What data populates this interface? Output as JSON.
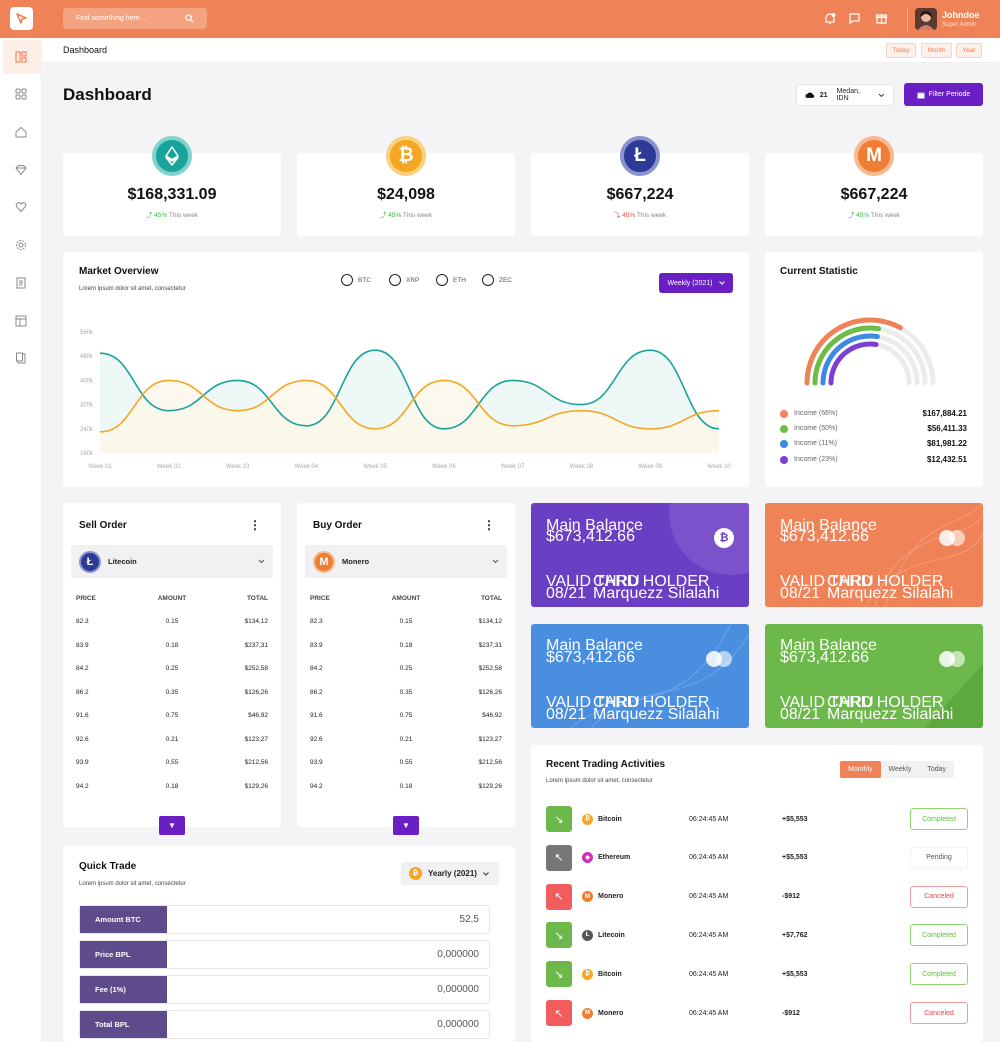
{
  "header": {
    "search_placeholder": "Find something here...",
    "user_name": "Johndoe",
    "user_role": "Super Admin"
  },
  "subbar": {
    "breadcrumb": "Dashboard",
    "ranges": [
      "Today",
      "Month",
      "Year"
    ]
  },
  "page": {
    "title": "Dashboard",
    "weather_temp": "21",
    "location": "Medan, IDN",
    "filter_label": "Filter Periode"
  },
  "stats": [
    {
      "coin": "ethereum",
      "value": "$168,331.09",
      "percent": "45%",
      "suffix": "This week",
      "trend": "up",
      "color": "#1aa39a"
    },
    {
      "coin": "bitcoin",
      "value": "$24,098",
      "percent": "45%",
      "suffix": "This week",
      "trend": "up",
      "color": "#f5a623"
    },
    {
      "coin": "litecoin",
      "value": "$667,224",
      "percent": "45%",
      "suffix": "This week",
      "trend": "down",
      "color": "#2e3a97"
    },
    {
      "coin": "monero",
      "value": "$667,224",
      "percent": "45%",
      "suffix": "This week",
      "trend": "up",
      "color": "#ef7d33"
    }
  ],
  "market": {
    "title": "Market Overview",
    "subtitle": "Lorem ipsum dolor sit amet, consectetur",
    "options": [
      "BTC",
      "XRP",
      "ETH",
      "ZEC"
    ],
    "period_label": "Weekly (2021)"
  },
  "chart_data": {
    "type": "area",
    "x": [
      "Week 01",
      "Week 02",
      "Week 03",
      "Week 04",
      "Week 05",
      "Week 06",
      "Week 07",
      "Week 08",
      "Week 09",
      "Week 10"
    ],
    "yticks": [
      "160k",
      "240k",
      "320k",
      "400k",
      "480k",
      "560k"
    ],
    "ylim": [
      160,
      560
    ],
    "series": [
      {
        "color": "#1aa39a",
        "values": [
          490,
          300,
          400,
          250,
          500,
          240,
          400,
          320,
          500,
          240
        ]
      },
      {
        "color": "#f5a623",
        "values": [
          230,
          400,
          300,
          400,
          240,
          400,
          250,
          300,
          240,
          300
        ]
      }
    ]
  },
  "current_statistic": {
    "title": "Current Statistic",
    "items": [
      {
        "label": "Income (66%)",
        "value": "$167,884.21",
        "color": "#ef8256"
      },
      {
        "label": "Income (50%)",
        "value": "$56,411.33",
        "color": "#6cbd45"
      },
      {
        "label": "Income (11%)",
        "value": "$81,981.22",
        "color": "#3b8ae6"
      },
      {
        "label": "Income (23%)",
        "value": "$12,432.51",
        "color": "#7b3fd1"
      }
    ]
  },
  "sell_order": {
    "title": "Sell Order",
    "coin": "Litecoin",
    "headers": [
      "PRICE",
      "AMOUNT",
      "TOTAL"
    ],
    "rows": [
      [
        "82.3",
        "0.15",
        "$134,12"
      ],
      [
        "83.9",
        "0.18",
        "$237,31"
      ],
      [
        "84.2",
        "0.25",
        "$252,58"
      ],
      [
        "86.2",
        "0.35",
        "$126,26"
      ],
      [
        "91.6",
        "0.75",
        "$46,92"
      ],
      [
        "92.6",
        "0.21",
        "$123,27"
      ],
      [
        "93.9",
        "0.55",
        "$212,56"
      ],
      [
        "94.2",
        "0.18",
        "$129,26"
      ]
    ]
  },
  "buy_order": {
    "title": "Buy Order",
    "coin": "Monero",
    "headers": [
      "PRICE",
      "AMOUNT",
      "TOTAL"
    ],
    "rows": [
      [
        "82.3",
        "0.15",
        "$134,12"
      ],
      [
        "83.9",
        "0.18",
        "$237,31"
      ],
      [
        "84.2",
        "0.25",
        "$252,58"
      ],
      [
        "86.2",
        "0.35",
        "$126,26"
      ],
      [
        "91.6",
        "0.75",
        "$46,92"
      ],
      [
        "92.6",
        "0.21",
        "$123,27"
      ],
      [
        "93.9",
        "0.55",
        "$212,56"
      ],
      [
        "94.2",
        "0.18",
        "$129,26"
      ]
    ]
  },
  "balances": [
    {
      "label": "Main Balance",
      "value": "$673,412.66",
      "valid_label": "VALID THRU",
      "valid": "08/21",
      "holder_label": "CARD HOLDER",
      "holder": "Marquezz Silalahi",
      "color": "#6a3fc4"
    },
    {
      "label": "Main Balance",
      "value": "$673,412.66",
      "valid_label": "VALID THRU",
      "valid": "08/21",
      "holder_label": "CARD HOLDER",
      "holder": "Marquezz Silalahi",
      "color": "#ef8256"
    },
    {
      "label": "Main Balance",
      "value": "$673,412.66",
      "valid_label": "VALID THRU",
      "valid": "08/21",
      "holder_label": "CARD HOLDER",
      "holder": "Marquezz Silalahi",
      "color": "#4a8ee0"
    },
    {
      "label": "Main Balance",
      "value": "$673,412.66",
      "valid_label": "VALID THRU",
      "valid": "08/21",
      "holder_label": "CARD HOLDER",
      "holder": "Marquezz Silalahi",
      "color": "#6cb84a"
    }
  ],
  "quick_trade": {
    "title": "Quick Trade",
    "subtitle": "Lorem ipsum dolor sit amet, consectetur",
    "period": "Yearly (2021)",
    "rows": [
      {
        "label": "Amount BTC",
        "value": "52.5"
      },
      {
        "label": "Price BPL",
        "value": "0,000000"
      },
      {
        "label": "Fee (1%)",
        "value": "0,000000"
      },
      {
        "label": "Total BPL",
        "value": "0,000000"
      }
    ]
  },
  "recent": {
    "title": "Recent Trading Activities",
    "subtitle": "Lorem ipsum dolor sit amet, consectetur",
    "tabs": [
      "Monthly",
      "Weekly",
      "Today"
    ],
    "rows": [
      {
        "coin": "Bitcoin",
        "time": "06:24:45 AM",
        "amount": "+$5,553",
        "status": "Completed",
        "dir": "down"
      },
      {
        "coin": "Ethereum",
        "time": "06:24:45 AM",
        "amount": "+$5,553",
        "status": "Pending",
        "dir": "up"
      },
      {
        "coin": "Monero",
        "time": "06:24:45 AM",
        "amount": "-$912",
        "status": "Canceled",
        "dir": "up"
      },
      {
        "coin": "Litecoin",
        "time": "06:24:45 AM",
        "amount": "+$7,762",
        "status": "Completed",
        "dir": "down"
      },
      {
        "coin": "Bitcoin",
        "time": "06:24:45 AM",
        "amount": "+$5,553",
        "status": "Completed",
        "dir": "down"
      },
      {
        "coin": "Monero",
        "time": "06:24:45 AM",
        "amount": "-$912",
        "status": "Canceled",
        "dir": "up"
      }
    ]
  }
}
